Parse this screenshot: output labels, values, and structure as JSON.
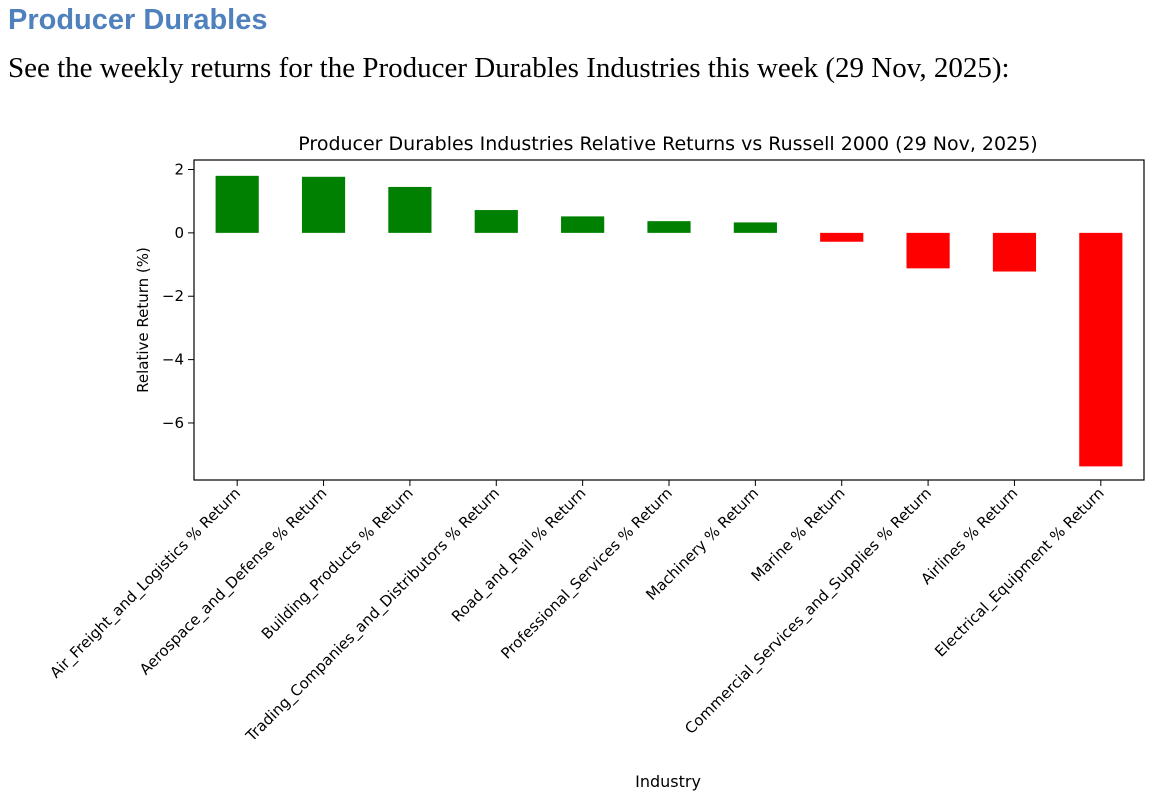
{
  "page": {
    "heading": "Producer Durables",
    "intro": "See the weekly returns for the Producer Durables Industries this week (29 Nov, 2025):"
  },
  "colors": {
    "heading": "#4f81bd",
    "positive": "#008000",
    "negative": "#ff0000"
  },
  "chart_data": {
    "type": "bar",
    "title": "Producer Durables Industries Relative Returns vs Russell 2000 (29 Nov, 2025)",
    "xlabel": "Industry",
    "ylabel": "Relative Return (%)",
    "ylim": [
      -7.8,
      2.3
    ],
    "yticks": [
      2,
      0,
      -2,
      -4,
      -6
    ],
    "ytick_labels": [
      "2",
      "0",
      "−2",
      "−4",
      "−6"
    ],
    "categories": [
      "Air_Freight_and_Logistics % Return",
      "Aerospace_and_Defense % Return",
      "Building_Products % Return",
      "Trading_Companies_and_Distributors % Return",
      "Road_and_Rail % Return",
      "Professional_Services % Return",
      "Machinery % Return",
      "Marine % Return",
      "Commercial_Services_and_Supplies % Return",
      "Airlines % Return",
      "Electrical_Equipment % Return"
    ],
    "values": [
      1.8,
      1.77,
      1.45,
      0.72,
      0.52,
      0.37,
      0.33,
      -0.28,
      -1.12,
      -1.22,
      -7.37
    ]
  }
}
